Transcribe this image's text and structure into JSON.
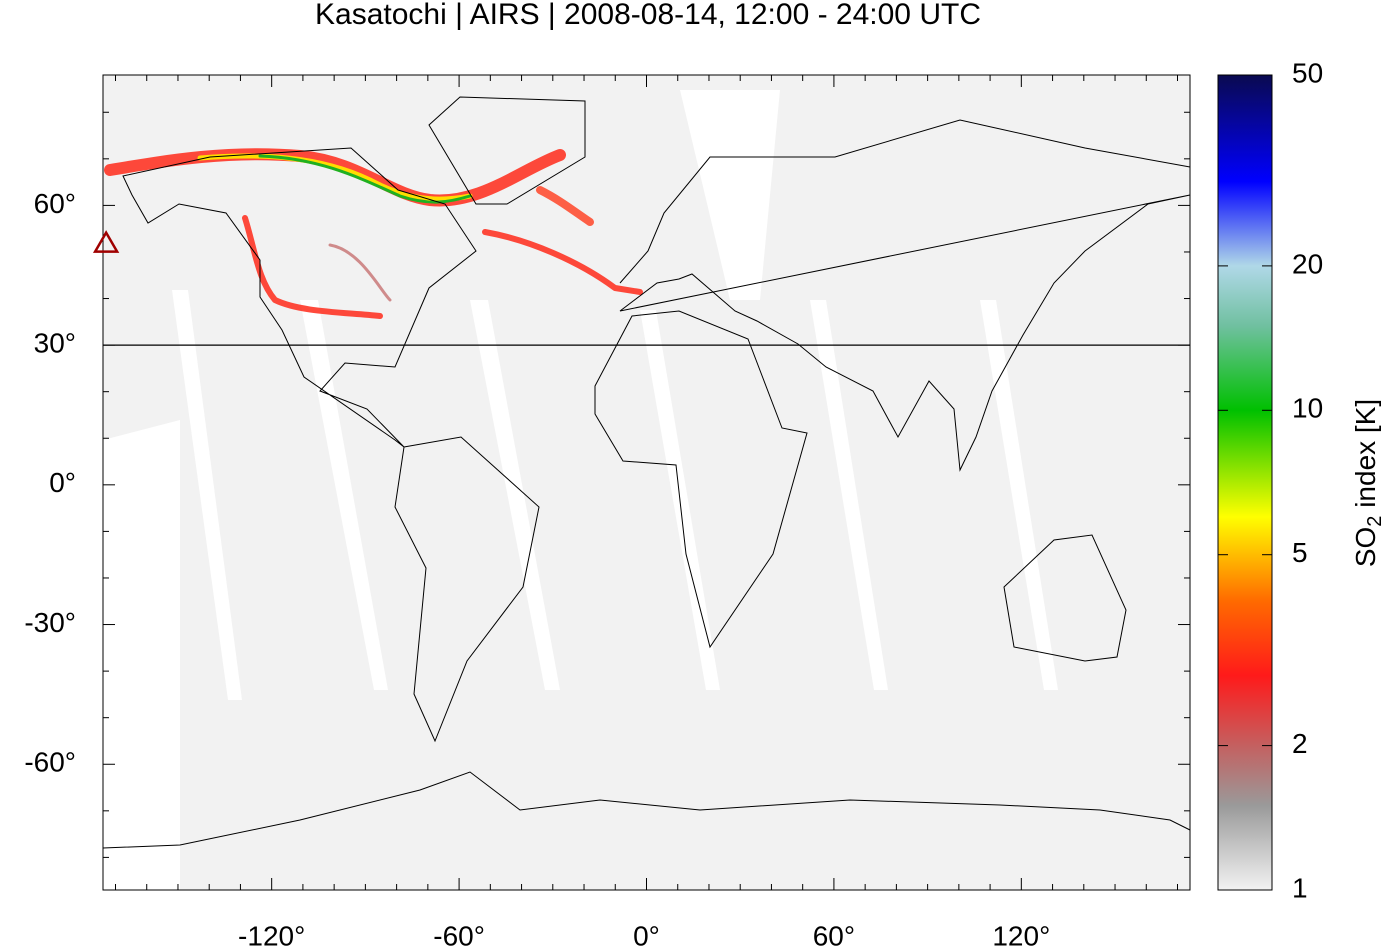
{
  "chart_data": {
    "type": "map",
    "title": "Kasatochi | AIRS | 2008-08-14, 12:00 - 24:00 UTC",
    "xlim": [
      -174,
      174
    ],
    "ylim": [
      -87,
      88
    ],
    "xticks": [
      {
        "value": -120,
        "label": "-120°"
      },
      {
        "value": -60,
        "label": "-60°"
      },
      {
        "value": 0,
        "label": "0°"
      },
      {
        "value": 60,
        "label": "60°"
      },
      {
        "value": 120,
        "label": "120°"
      }
    ],
    "yticks": [
      {
        "value": -60,
        "label": "-60°"
      },
      {
        "value": -30,
        "label": "-30°"
      },
      {
        "value": 0,
        "label": "0°"
      },
      {
        "value": 30,
        "label": "30°"
      },
      {
        "value": 60,
        "label": "60°"
      }
    ],
    "xminorticks": [
      -170,
      -160,
      -150,
      -140,
      -130,
      -110,
      -100,
      -90,
      -80,
      -70,
      -50,
      -40,
      -30,
      -20,
      -10,
      10,
      20,
      30,
      40,
      50,
      70,
      80,
      90,
      100,
      110,
      130,
      140,
      150,
      160,
      170
    ],
    "yminorticks": [
      -80,
      -70,
      -50,
      -40,
      -20,
      -10,
      10,
      20,
      40,
      50,
      70,
      80
    ],
    "hlines": [
      30
    ],
    "volcano": {
      "lon": -173,
      "lat": 52,
      "color": "#a00000"
    },
    "colorbar": {
      "label": [
        "SO",
        "2",
        " index [K]"
      ],
      "scale": "log",
      "lim": [
        1,
        50
      ],
      "ticks": [
        1,
        2,
        5,
        10,
        20,
        50
      ],
      "colormap": [
        {
          "value": 1,
          "color": "#f2f2f2"
        },
        {
          "value": 1.5,
          "color": "#9a9a9a"
        },
        {
          "value": 2,
          "color": "#c46060"
        },
        {
          "value": 2.8,
          "color": "#ff1a1a"
        },
        {
          "value": 4,
          "color": "#ff6a00"
        },
        {
          "value": 6,
          "color": "#ffff00"
        },
        {
          "value": 10,
          "color": "#00c000"
        },
        {
          "value": 15,
          "color": "#70c0a0"
        },
        {
          "value": 20,
          "color": "#b0d8e8"
        },
        {
          "value": 30,
          "color": "#0000ff"
        },
        {
          "value": 50,
          "color": "#0a0a50"
        }
      ]
    }
  }
}
